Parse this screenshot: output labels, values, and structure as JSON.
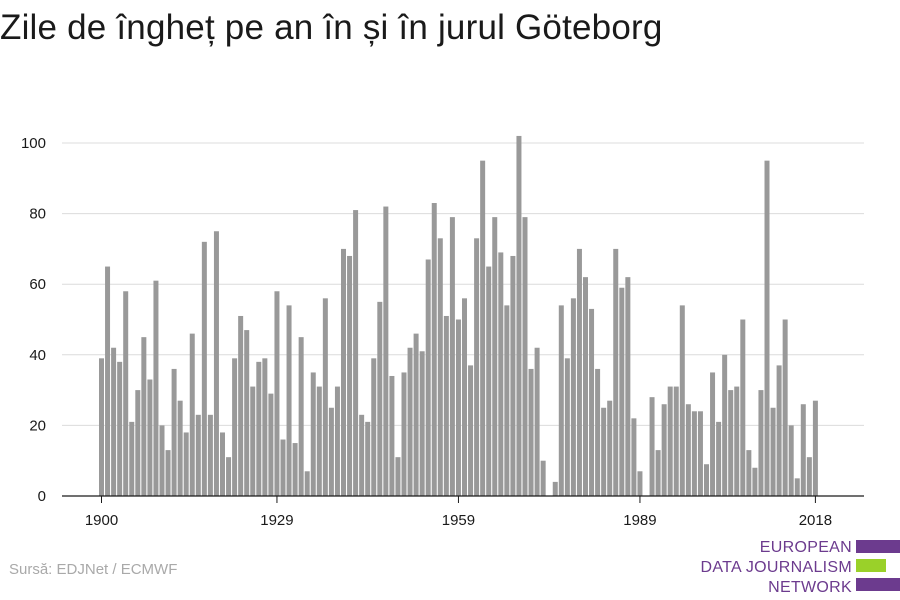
{
  "title": "Zile de îngheț pe an în și în jurul Göteborg",
  "source": "Sursă: EDJNet / ECMWF",
  "logo": {
    "line1": "EUROPEAN",
    "line2": "DATA JOURNALISM",
    "line3": "NETWORK",
    "colors": [
      "#6c3b8e",
      "#9ad129",
      "#6c3b8e"
    ]
  },
  "chart_data": {
    "type": "bar",
    "title": "Zile de îngheț pe an în și în jurul Göteborg",
    "xlabel": "",
    "ylabel": "",
    "bar_color": "#999999",
    "grid": true,
    "ylim": [
      0,
      105
    ],
    "y_ticks": [
      0,
      20,
      40,
      60,
      80,
      100
    ],
    "x_ticks": [
      1900,
      1929,
      1959,
      1989,
      2018
    ],
    "years": [
      1900,
      1901,
      1902,
      1903,
      1904,
      1905,
      1906,
      1907,
      1908,
      1909,
      1910,
      1911,
      1912,
      1913,
      1914,
      1915,
      1916,
      1917,
      1918,
      1919,
      1920,
      1921,
      1922,
      1923,
      1924,
      1925,
      1926,
      1927,
      1928,
      1929,
      1930,
      1931,
      1932,
      1933,
      1934,
      1935,
      1936,
      1937,
      1938,
      1939,
      1940,
      1941,
      1942,
      1943,
      1944,
      1945,
      1946,
      1947,
      1948,
      1949,
      1950,
      1951,
      1952,
      1953,
      1954,
      1955,
      1956,
      1957,
      1958,
      1959,
      1960,
      1961,
      1962,
      1963,
      1964,
      1965,
      1966,
      1967,
      1968,
      1969,
      1970,
      1971,
      1972,
      1973,
      1974,
      1975,
      1976,
      1977,
      1978,
      1979,
      1980,
      1981,
      1982,
      1983,
      1984,
      1985,
      1986,
      1987,
      1988,
      1989,
      1990,
      1991,
      1992,
      1993,
      1994,
      1995,
      1996,
      1997,
      1998,
      1999,
      2000,
      2001,
      2002,
      2003,
      2004,
      2005,
      2006,
      2007,
      2008,
      2009,
      2010,
      2011,
      2012,
      2013,
      2014,
      2015,
      2016,
      2017,
      2018
    ],
    "values": [
      39,
      65,
      42,
      38,
      58,
      21,
      30,
      45,
      33,
      61,
      20,
      13,
      36,
      27,
      18,
      46,
      23,
      72,
      23,
      75,
      18,
      11,
      39,
      51,
      47,
      31,
      38,
      39,
      29,
      58,
      16,
      54,
      15,
      45,
      7,
      35,
      31,
      56,
      25,
      31,
      70,
      68,
      81,
      23,
      21,
      39,
      55,
      82,
      34,
      11,
      35,
      42,
      46,
      41,
      67,
      83,
      73,
      51,
      79,
      50,
      56,
      37,
      73,
      95,
      65,
      79,
      69,
      54,
      68,
      102,
      79,
      36,
      42,
      10,
      0,
      4,
      54,
      39,
      56,
      70,
      62,
      53,
      36,
      25,
      27,
      70,
      59,
      62,
      22,
      7,
      0,
      28,
      13,
      26,
      31,
      31,
      54,
      26,
      24,
      24,
      9,
      35,
      21,
      40,
      30,
      31,
      50,
      13,
      8,
      30,
      95,
      25,
      37,
      50,
      20,
      5,
      26,
      11,
      27
    ]
  }
}
